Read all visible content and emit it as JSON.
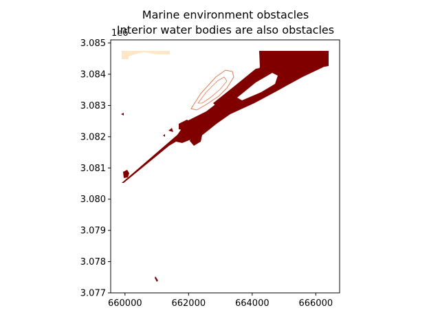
{
  "chart_data": {
    "type": "map",
    "title_line1": "Marine environment obstacles",
    "title_line2": "Interior water bodies are also obstacles",
    "y_offset_label": "1e6",
    "xlim": [
      659550,
      666750
    ],
    "ylim": [
      3077000,
      3085100
    ],
    "x_ticks": [
      660000,
      662000,
      664000,
      666000
    ],
    "x_tick_labels": [
      "660000",
      "662000",
      "664000",
      "666000"
    ],
    "y_ticks": [
      3077000,
      3078000,
      3079000,
      3080000,
      3081000,
      3082000,
      3083000,
      3084000,
      3085000
    ],
    "y_tick_labels": [
      "3.077",
      "3.078",
      "3.079",
      "3.080",
      "3.081",
      "3.082",
      "3.083",
      "3.084",
      "3.085"
    ],
    "grid": false,
    "legend": false,
    "colors": {
      "water": "#800000",
      "light_land": "#fde7c6",
      "contour": "#e07850"
    }
  }
}
